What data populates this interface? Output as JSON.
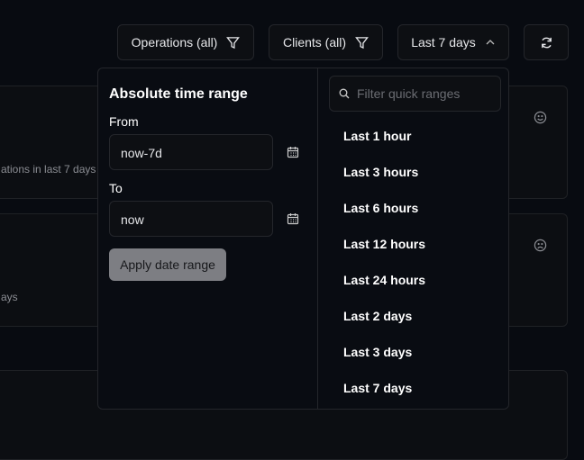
{
  "toolbar": {
    "operations": "Operations (all)",
    "clients": "Clients (all)",
    "range": "Last 7 days"
  },
  "cards": [
    {
      "subtitle": "ations in last 7 days"
    },
    {
      "subtitle": "ays"
    }
  ],
  "picker": {
    "title": "Absolute time range",
    "from_label": "From",
    "from_value": "now-7d",
    "to_label": "To",
    "to_value": "now",
    "apply": "Apply date range",
    "search_placeholder": "Filter quick ranges",
    "quick_ranges": [
      "Last 1 hour",
      "Last 3 hours",
      "Last 6 hours",
      "Last 12 hours",
      "Last 24 hours",
      "Last 2 days",
      "Last 3 days",
      "Last 7 days"
    ]
  }
}
